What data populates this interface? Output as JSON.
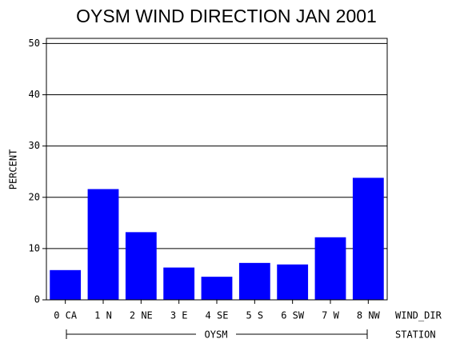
{
  "chart_data": {
    "type": "bar",
    "title": "OYSM WIND DIRECTION JAN 2001",
    "ylabel": "PERCENT",
    "xlabel": "WIND_DIR",
    "group_axis_label": "STATION",
    "group": "OYSM",
    "categories": [
      "0 CA",
      "1 N",
      "2 NE",
      "3 E",
      "4 SE",
      "5 S",
      "6 SW",
      "7 W",
      "8 NW"
    ],
    "values": [
      5.8,
      21.6,
      13.2,
      6.3,
      4.5,
      7.2,
      6.9,
      12.2,
      23.8
    ],
    "color": "#0000ff",
    "ylim": [
      0,
      51
    ],
    "yticks": [
      0,
      10,
      20,
      30,
      40,
      50
    ],
    "grid": true
  }
}
